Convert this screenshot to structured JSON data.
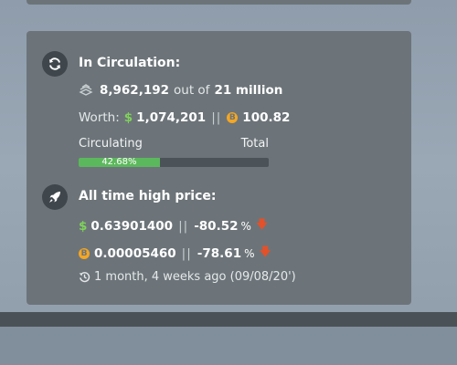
{
  "circulation": {
    "heading": "In Circulation:",
    "amount": "8,962,192",
    "out_of": "out of",
    "max_supply": "21 million",
    "worth_label": "Worth:",
    "usd_symbol": "$",
    "worth_usd": "1,074,201",
    "separator": "||",
    "btc_symbol": "B",
    "worth_btc": "100.82",
    "circulating_label": "Circulating",
    "total_label": "Total",
    "progress_text": "42.68%",
    "progress_fraction": 0.4268
  },
  "ath": {
    "heading": "All time high price:",
    "usd_symbol": "$",
    "usd_price": "0.63901400",
    "usd_change": "-80.52",
    "btc_symbol": "B",
    "btc_price": "0.00005460",
    "btc_change": "-78.61",
    "percent_sign": "%",
    "separator": "||",
    "history": "1 month, 4 weeks ago (09/08/20')"
  },
  "colors": {
    "card": "#6c7479",
    "progress": "#5cb85c",
    "usd": "#7fd25b",
    "btc": "#f5a623",
    "down": "#e2512a"
  },
  "icons": {
    "circulation": "refresh-icon",
    "supply": "coin-stack-icon",
    "ath": "rocket-icon",
    "history": "history-icon",
    "down": "arrow-down-icon"
  }
}
